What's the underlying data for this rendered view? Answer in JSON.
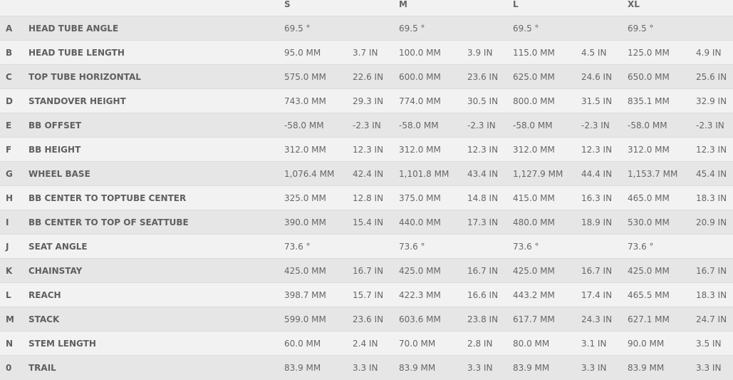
{
  "sizes": [
    "S",
    "M",
    "L",
    "XL"
  ],
  "rows": [
    {
      "letter": "A",
      "name": "HEAD TUBE ANGLE",
      "v": [
        [
          "69.5 °",
          ""
        ],
        [
          "69.5 °",
          ""
        ],
        [
          "69.5 °",
          ""
        ],
        [
          "69.5 °",
          ""
        ]
      ]
    },
    {
      "letter": "B",
      "name": "HEAD TUBE LENGTH",
      "v": [
        [
          "95.0 MM",
          "3.7 IN"
        ],
        [
          "100.0 MM",
          "3.9 IN"
        ],
        [
          "115.0 MM",
          "4.5 IN"
        ],
        [
          "125.0 MM",
          "4.9 IN"
        ]
      ]
    },
    {
      "letter": "C",
      "name": "TOP TUBE HORIZONTAL",
      "v": [
        [
          "575.0 MM",
          "22.6 IN"
        ],
        [
          "600.0 MM",
          "23.6 IN"
        ],
        [
          "625.0 MM",
          "24.6 IN"
        ],
        [
          "650.0 MM",
          "25.6 IN"
        ]
      ]
    },
    {
      "letter": "D",
      "name": "STANDOVER HEIGHT",
      "v": [
        [
          "743.0 MM",
          "29.3 IN"
        ],
        [
          "774.0 MM",
          "30.5 IN"
        ],
        [
          "800.0 MM",
          "31.5 IN"
        ],
        [
          "835.1 MM",
          "32.9 IN"
        ]
      ]
    },
    {
      "letter": "E",
      "name": "BB OFFSET",
      "v": [
        [
          "-58.0 MM",
          "-2.3 IN"
        ],
        [
          "-58.0 MM",
          "-2.3 IN"
        ],
        [
          "-58.0 MM",
          "-2.3 IN"
        ],
        [
          "-58.0 MM",
          "-2.3 IN"
        ]
      ]
    },
    {
      "letter": "F",
      "name": "BB HEIGHT",
      "v": [
        [
          "312.0 MM",
          "12.3 IN"
        ],
        [
          "312.0 MM",
          "12.3 IN"
        ],
        [
          "312.0 MM",
          "12.3 IN"
        ],
        [
          "312.0 MM",
          "12.3 IN"
        ]
      ]
    },
    {
      "letter": "G",
      "name": "WHEEL BASE",
      "v": [
        [
          "1,076.4 MM",
          "42.4 IN"
        ],
        [
          "1,101.8 MM",
          "43.4 IN"
        ],
        [
          "1,127.9 MM",
          "44.4 IN"
        ],
        [
          "1,153.7 MM",
          "45.4 IN"
        ]
      ]
    },
    {
      "letter": "H",
      "name": "BB CENTER TO TOPTUBE CENTER",
      "v": [
        [
          "325.0 MM",
          "12.8 IN"
        ],
        [
          "375.0 MM",
          "14.8 IN"
        ],
        [
          "415.0 MM",
          "16.3 IN"
        ],
        [
          "465.0 MM",
          "18.3 IN"
        ]
      ]
    },
    {
      "letter": "I",
      "name": "BB CENTER TO TOP OF SEATTUBE",
      "v": [
        [
          "390.0 MM",
          "15.4 IN"
        ],
        [
          "440.0 MM",
          "17.3 IN"
        ],
        [
          "480.0 MM",
          "18.9 IN"
        ],
        [
          "530.0 MM",
          "20.9 IN"
        ]
      ]
    },
    {
      "letter": "J",
      "name": "SEAT ANGLE",
      "v": [
        [
          "73.6 °",
          ""
        ],
        [
          "73.6 °",
          ""
        ],
        [
          "73.6 °",
          ""
        ],
        [
          "73.6 °",
          ""
        ]
      ]
    },
    {
      "letter": "K",
      "name": "CHAINSTAY",
      "v": [
        [
          "425.0 MM",
          "16.7 IN"
        ],
        [
          "425.0 MM",
          "16.7 IN"
        ],
        [
          "425.0 MM",
          "16.7 IN"
        ],
        [
          "425.0 MM",
          "16.7 IN"
        ]
      ]
    },
    {
      "letter": "L",
      "name": "REACH",
      "v": [
        [
          "398.7 MM",
          "15.7 IN"
        ],
        [
          "422.3 MM",
          "16.6 IN"
        ],
        [
          "443.2 MM",
          "17.4 IN"
        ],
        [
          "465.5 MM",
          "18.3 IN"
        ]
      ]
    },
    {
      "letter": "M",
      "name": "STACK",
      "v": [
        [
          "599.0 MM",
          "23.6 IN"
        ],
        [
          "603.6 MM",
          "23.8 IN"
        ],
        [
          "617.7 MM",
          "24.3 IN"
        ],
        [
          "627.1 MM",
          "24.7 IN"
        ]
      ]
    },
    {
      "letter": "N",
      "name": "STEM LENGTH",
      "v": [
        [
          "60.0 MM",
          "2.4 IN"
        ],
        [
          "70.0 MM",
          "2.8 IN"
        ],
        [
          "80.0 MM",
          "3.1 IN"
        ],
        [
          "90.0 MM",
          "3.5 IN"
        ]
      ]
    },
    {
      "letter": "0",
      "name": "TRAIL",
      "v": [
        [
          "83.9 MM",
          "3.3 IN"
        ],
        [
          "83.9 MM",
          "3.3 IN"
        ],
        [
          "83.9 MM",
          "3.3 IN"
        ],
        [
          "83.9 MM",
          "3.3 IN"
        ]
      ]
    }
  ]
}
